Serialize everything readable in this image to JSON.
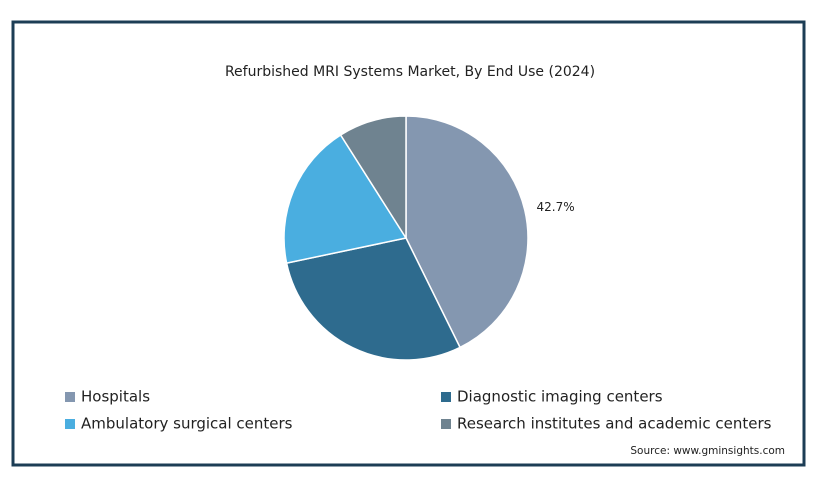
{
  "chart_data": {
    "type": "pie",
    "title": "Refurbished MRI Systems Market, By End Use (2024)",
    "categories": [
      "Hospitals",
      "Diagnostic imaging centers",
      "Ambulatory surgical centers",
      "Research institutes and academic centers"
    ],
    "values": [
      42.7,
      29.0,
      19.3,
      9.0
    ],
    "value_labels": [
      "42.7%",
      null,
      null,
      null
    ],
    "colors": [
      "#8497b0",
      "#2e6b8e",
      "#4aaee0",
      "#6f8390"
    ],
    "source": "Source: www.gminsights.com"
  }
}
